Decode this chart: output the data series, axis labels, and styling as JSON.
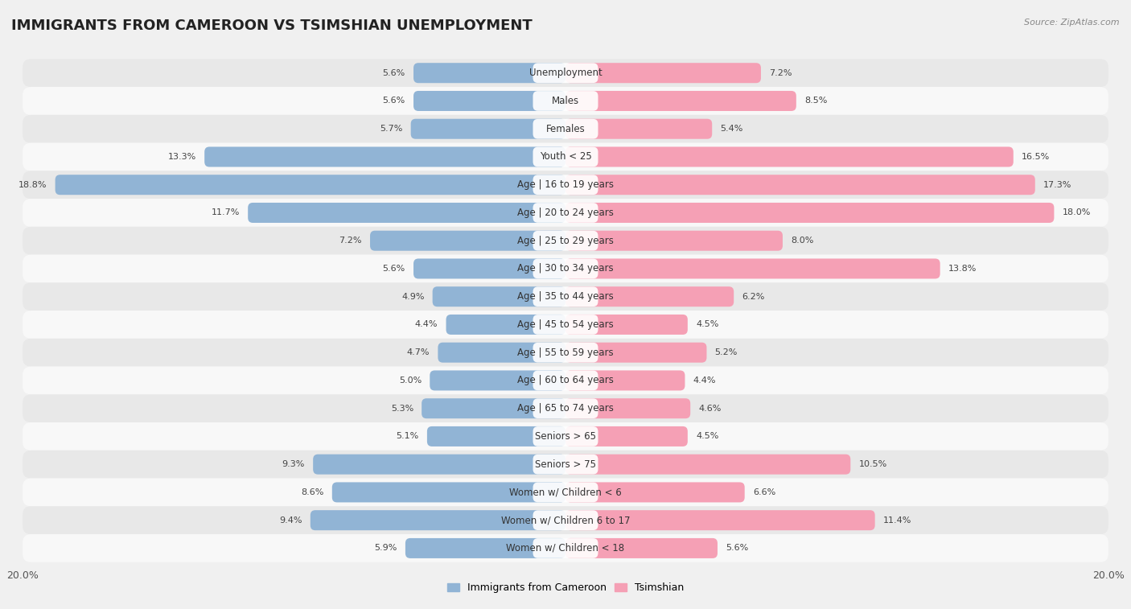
{
  "title": "IMMIGRANTS FROM CAMEROON VS TSIMSHIAN UNEMPLOYMENT",
  "source": "Source: ZipAtlas.com",
  "categories": [
    "Unemployment",
    "Males",
    "Females",
    "Youth < 25",
    "Age | 16 to 19 years",
    "Age | 20 to 24 years",
    "Age | 25 to 29 years",
    "Age | 30 to 34 years",
    "Age | 35 to 44 years",
    "Age | 45 to 54 years",
    "Age | 55 to 59 years",
    "Age | 60 to 64 years",
    "Age | 65 to 74 years",
    "Seniors > 65",
    "Seniors > 75",
    "Women w/ Children < 6",
    "Women w/ Children 6 to 17",
    "Women w/ Children < 18"
  ],
  "cameroon": [
    5.6,
    5.6,
    5.7,
    13.3,
    18.8,
    11.7,
    7.2,
    5.6,
    4.9,
    4.4,
    4.7,
    5.0,
    5.3,
    5.1,
    9.3,
    8.6,
    9.4,
    5.9
  ],
  "tsimshian": [
    7.2,
    8.5,
    5.4,
    16.5,
    17.3,
    18.0,
    8.0,
    13.8,
    6.2,
    4.5,
    5.2,
    4.4,
    4.6,
    4.5,
    10.5,
    6.6,
    11.4,
    5.6
  ],
  "cameroon_color": "#91b4d5",
  "tsimshian_color": "#f5a0b5",
  "cameroon_label": "Immigrants from Cameroon",
  "tsimshian_label": "Tsimshian",
  "xlim": 20.0,
  "background_color": "#f0f0f0",
  "row_color_even": "#e8e8e8",
  "row_color_odd": "#f8f8f8",
  "title_fontsize": 13,
  "label_fontsize": 8.5,
  "value_fontsize": 8.0
}
